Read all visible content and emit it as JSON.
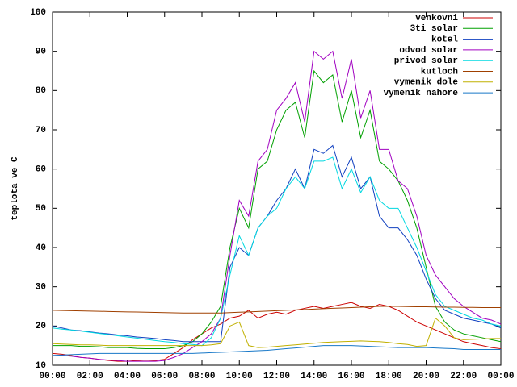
{
  "chart_data": {
    "type": "line",
    "ylabel": "teplota ve C",
    "x": [
      0,
      0.5,
      1,
      1.5,
      2,
      2.5,
      3,
      3.5,
      4,
      4.5,
      5,
      5.5,
      6,
      6.5,
      7,
      7.5,
      8,
      8.5,
      9,
      9.5,
      10,
      10.5,
      11,
      11.5,
      12,
      12.5,
      13,
      13.5,
      14,
      14.5,
      15,
      15.5,
      16,
      16.5,
      17,
      17.5,
      18,
      18.5,
      19,
      19.5,
      20,
      20.5,
      21,
      21.5,
      22,
      22.5,
      23,
      23.5,
      24
    ],
    "xlim": [
      0,
      24
    ],
    "xticks": [
      {
        "value": 0,
        "label": "00:00"
      },
      {
        "value": 2,
        "label": "02:00"
      },
      {
        "value": 4,
        "label": "04:00"
      },
      {
        "value": 6,
        "label": "06:00"
      },
      {
        "value": 8,
        "label": "08:00"
      },
      {
        "value": 10,
        "label": "10:00"
      },
      {
        "value": 12,
        "label": "12:00"
      },
      {
        "value": 14,
        "label": "14:00"
      },
      {
        "value": 16,
        "label": "16:00"
      },
      {
        "value": 18,
        "label": "18:00"
      },
      {
        "value": 20,
        "label": "20:00"
      },
      {
        "value": 22,
        "label": "22:00"
      },
      {
        "value": 24,
        "label": "00:00"
      }
    ],
    "ylim": [
      10,
      100
    ],
    "yticks": [
      10,
      20,
      30,
      40,
      50,
      60,
      70,
      80,
      90,
      100
    ],
    "grid": false,
    "legend": "top-right",
    "series": [
      {
        "name": "venkovni",
        "color": "#cc0000",
        "values": [
          13,
          12.8,
          12.5,
          12,
          11.8,
          11.5,
          11.2,
          11,
          11,
          11.2,
          11.3,
          11.2,
          11.5,
          13,
          14.5,
          16.5,
          18,
          19.5,
          20.5,
          22,
          22.5,
          24,
          22,
          23,
          23.5,
          23,
          24,
          24.5,
          25,
          24.5,
          25,
          25.5,
          26,
          25,
          24.5,
          25.5,
          25,
          24,
          22.5,
          21,
          20,
          19,
          18,
          17,
          16,
          15.5,
          15,
          14.5,
          14.2
        ]
      },
      {
        "name": "3ti solar",
        "color": "#00a000",
        "values": [
          15,
          15,
          15,
          14.8,
          14.8,
          14.7,
          14.5,
          14.5,
          14.5,
          14.3,
          14.2,
          14.2,
          14.2,
          14.5,
          15,
          16,
          18,
          21,
          25,
          40,
          50,
          45,
          60,
          62,
          70,
          75,
          77,
          68,
          85,
          82,
          84,
          72,
          80,
          68,
          75,
          62,
          60,
          57,
          52,
          45,
          35,
          25,
          21,
          19,
          18,
          17.5,
          17,
          16.5,
          16
        ]
      },
      {
        "name": "kotel",
        "color": "#1040c0",
        "values": [
          20,
          19.5,
          19,
          18.8,
          18.5,
          18.2,
          18,
          17.7,
          17.5,
          17.2,
          17,
          16.8,
          16.5,
          16.3,
          16,
          16,
          16,
          16,
          16,
          35,
          40,
          38,
          45,
          48,
          52,
          55,
          60,
          55,
          65,
          64,
          66,
          58,
          63,
          55,
          58,
          48,
          45,
          45,
          42,
          38,
          32,
          27,
          24,
          23,
          22,
          21.5,
          21,
          20.5,
          19.5
        ]
      },
      {
        "name": "odvod solar",
        "color": "#a000c0",
        "values": [
          12.5,
          12.5,
          12.3,
          12,
          11.8,
          11.5,
          11.3,
          11.2,
          11,
          11,
          11,
          11,
          11.2,
          12,
          13,
          14.5,
          16,
          18,
          22,
          38,
          52,
          48,
          62,
          65,
          75,
          78,
          82,
          72,
          90,
          88,
          90,
          78,
          88,
          73,
          80,
          65,
          65,
          57,
          55,
          48,
          38,
          33,
          30,
          27,
          25,
          23.5,
          22,
          21.5,
          20.5
        ]
      },
      {
        "name": "privod solar",
        "color": "#00d8e0",
        "values": [
          19.5,
          19.2,
          19,
          18.7,
          18.4,
          18.1,
          17.8,
          17.5,
          17.2,
          16.9,
          16.6,
          16.3,
          16,
          15.8,
          15.5,
          15.3,
          15,
          17,
          22,
          33,
          43,
          38,
          45,
          48,
          50,
          55,
          58,
          55,
          62,
          62,
          63,
          55,
          60,
          54,
          58,
          52,
          50,
          50,
          45,
          40,
          34,
          28,
          25,
          24,
          23,
          22,
          21.5,
          20.5,
          20
        ]
      },
      {
        "name": "kutloch",
        "color": "#a04000",
        "values": [
          24,
          23.95,
          23.9,
          23.85,
          23.8,
          23.75,
          23.7,
          23.65,
          23.6,
          23.55,
          23.5,
          23.45,
          23.4,
          23.35,
          23.3,
          23.3,
          23.3,
          23.3,
          23.3,
          23.4,
          23.5,
          23.6,
          23.7,
          23.8,
          23.9,
          24,
          24.1,
          24.2,
          24.3,
          24.4,
          24.5,
          24.6,
          24.7,
          24.8,
          24.9,
          25,
          25,
          25,
          24.95,
          24.9,
          24.9,
          24.85,
          24.8,
          24.8,
          24.75,
          24.75,
          24.7,
          24.7,
          24.7
        ]
      },
      {
        "name": "vymenik dole",
        "color": "#c0b000",
        "values": [
          15.5,
          15.4,
          15.3,
          15.2,
          15.2,
          15.1,
          15,
          15,
          15,
          15,
          15,
          15,
          15,
          15,
          15,
          15,
          15,
          15.2,
          15.5,
          20,
          21,
          15,
          14.5,
          14.6,
          14.8,
          15,
          15.2,
          15.4,
          15.6,
          15.8,
          15.9,
          16,
          16.1,
          16.2,
          16.1,
          16,
          15.8,
          15.5,
          15.3,
          14.8,
          15,
          22,
          20,
          17,
          16.5,
          16.6,
          16.7,
          16.8,
          16.8
        ]
      },
      {
        "name": "vymenik nahore",
        "color": "#1878c8",
        "values": [
          12.5,
          12.6,
          12.7,
          12.8,
          12.9,
          13,
          13,
          13,
          13,
          13,
          13,
          13,
          13,
          13,
          13,
          13,
          13.1,
          13.2,
          13.3,
          13.4,
          13.5,
          13.6,
          13.7,
          13.8,
          14,
          14.2,
          14.4,
          14.6,
          14.8,
          15,
          15,
          15,
          15,
          14.9,
          14.8,
          14.7,
          14.6,
          14.5,
          14.5,
          14.5,
          14.5,
          14.4,
          14.3,
          14.2,
          14,
          14,
          14,
          14,
          14
        ]
      }
    ]
  }
}
